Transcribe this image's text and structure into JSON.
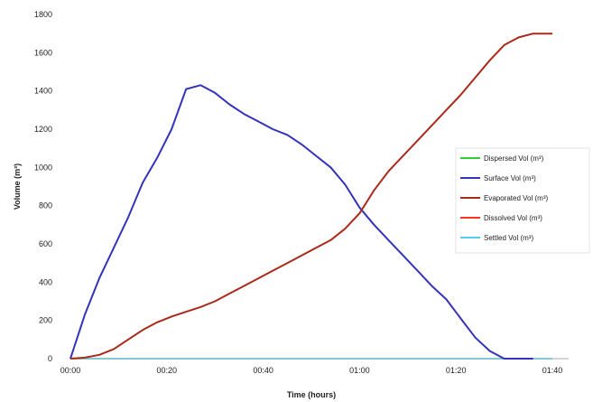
{
  "chart_data": {
    "type": "line",
    "xlabel": "Time (hours)",
    "ylabel": "Volume (m³)",
    "x_ticks": [
      "00:00",
      "00:20",
      "00:40",
      "01:00",
      "01:20",
      "01:40"
    ],
    "xlim": [
      0,
      100
    ],
    "ylim": [
      0,
      1800
    ],
    "y_ticks": [
      0,
      200,
      400,
      600,
      800,
      1000,
      1200,
      1400,
      1600,
      1800
    ],
    "grid": false,
    "legend_position": "right",
    "series": [
      {
        "name": "Dispersed Vol (m³)",
        "color": "#33cc33",
        "x": [
          0,
          100
        ],
        "y": [
          0,
          0
        ]
      },
      {
        "name": "Surface Vol (m³)",
        "color": "#3333bb",
        "x": [
          0,
          3,
          6,
          9,
          12,
          15,
          18,
          21,
          24,
          27,
          30,
          33,
          36,
          39,
          42,
          45,
          48,
          51,
          54,
          57,
          60,
          63,
          66,
          69,
          72,
          75,
          78,
          81,
          84,
          87,
          90,
          93,
          96
        ],
        "y": [
          0,
          230,
          420,
          580,
          740,
          920,
          1050,
          1200,
          1410,
          1430,
          1390,
          1330,
          1280,
          1240,
          1200,
          1170,
          1120,
          1060,
          1000,
          910,
          790,
          700,
          620,
          540,
          460,
          380,
          310,
          210,
          110,
          40,
          0,
          0,
          0
        ]
      },
      {
        "name": "Evaporated Vol (m³)",
        "color": "#aa2a1a",
        "x": [
          0,
          3,
          6,
          9,
          12,
          15,
          18,
          21,
          24,
          27,
          30,
          33,
          36,
          39,
          42,
          45,
          48,
          51,
          54,
          57,
          60,
          63,
          66,
          69,
          72,
          75,
          78,
          81,
          84,
          87,
          90,
          93,
          96,
          100
        ],
        "y": [
          0,
          5,
          20,
          50,
          100,
          150,
          190,
          220,
          245,
          270,
          300,
          340,
          380,
          420,
          460,
          500,
          540,
          580,
          620,
          680,
          760,
          880,
          980,
          1060,
          1140,
          1220,
          1300,
          1380,
          1470,
          1560,
          1640,
          1680,
          1700,
          1700
        ]
      },
      {
        "name": "Dissolved Vol (m³)",
        "color": "#ff3322",
        "x": [
          0,
          100
        ],
        "y": [
          0,
          0
        ]
      },
      {
        "name": "Settled Vol (m³)",
        "color": "#55ccee",
        "x": [
          0,
          100
        ],
        "y": [
          0,
          0
        ]
      }
    ]
  }
}
